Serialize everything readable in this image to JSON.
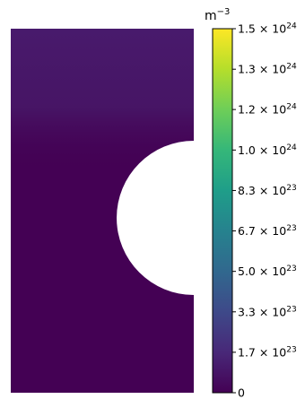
{
  "chart_data": {
    "type": "heatmap",
    "title": "",
    "colormap": "viridis",
    "colorbar": {
      "unit_base": "m",
      "unit_exp": "−3",
      "range": [
        0,
        1.5e+24
      ],
      "ticks": [
        {
          "value": 0,
          "mantissa": "0",
          "exp": ""
        },
        {
          "value": 1.667e+23,
          "mantissa": "1.7 × 10",
          "exp": "23"
        },
        {
          "value": 3.333e+23,
          "mantissa": "3.3 × 10",
          "exp": "23"
        },
        {
          "value": 5e+23,
          "mantissa": "5.0 × 10",
          "exp": "23"
        },
        {
          "value": 6.667e+23,
          "mantissa": "6.7 × 10",
          "exp": "23"
        },
        {
          "value": 8.333e+23,
          "mantissa": "8.3 × 10",
          "exp": "23"
        },
        {
          "value": 1e+24,
          "mantissa": "1.0 × 10",
          "exp": "24"
        },
        {
          "value": 1.167e+24,
          "mantissa": "1.2 × 10",
          "exp": "24"
        },
        {
          "value": 1.333e+24,
          "mantissa": "1.3 × 10",
          "exp": "24"
        },
        {
          "value": 1.5e+24,
          "mantissa": "1.5 × 10",
          "exp": "24"
        }
      ]
    },
    "field": {
      "background_value": 0,
      "upper_region_value": 1e+23,
      "hole": "semicircle cut-out on right edge"
    }
  },
  "colors": {
    "viridis": [
      "#440154",
      "#482878",
      "#3e4989",
      "#31688e",
      "#26828e",
      "#1f9e89",
      "#35b779",
      "#6ece58",
      "#b5de2b",
      "#fde725"
    ],
    "field_dark": "#440154",
    "field_upper": "#481a6c"
  }
}
